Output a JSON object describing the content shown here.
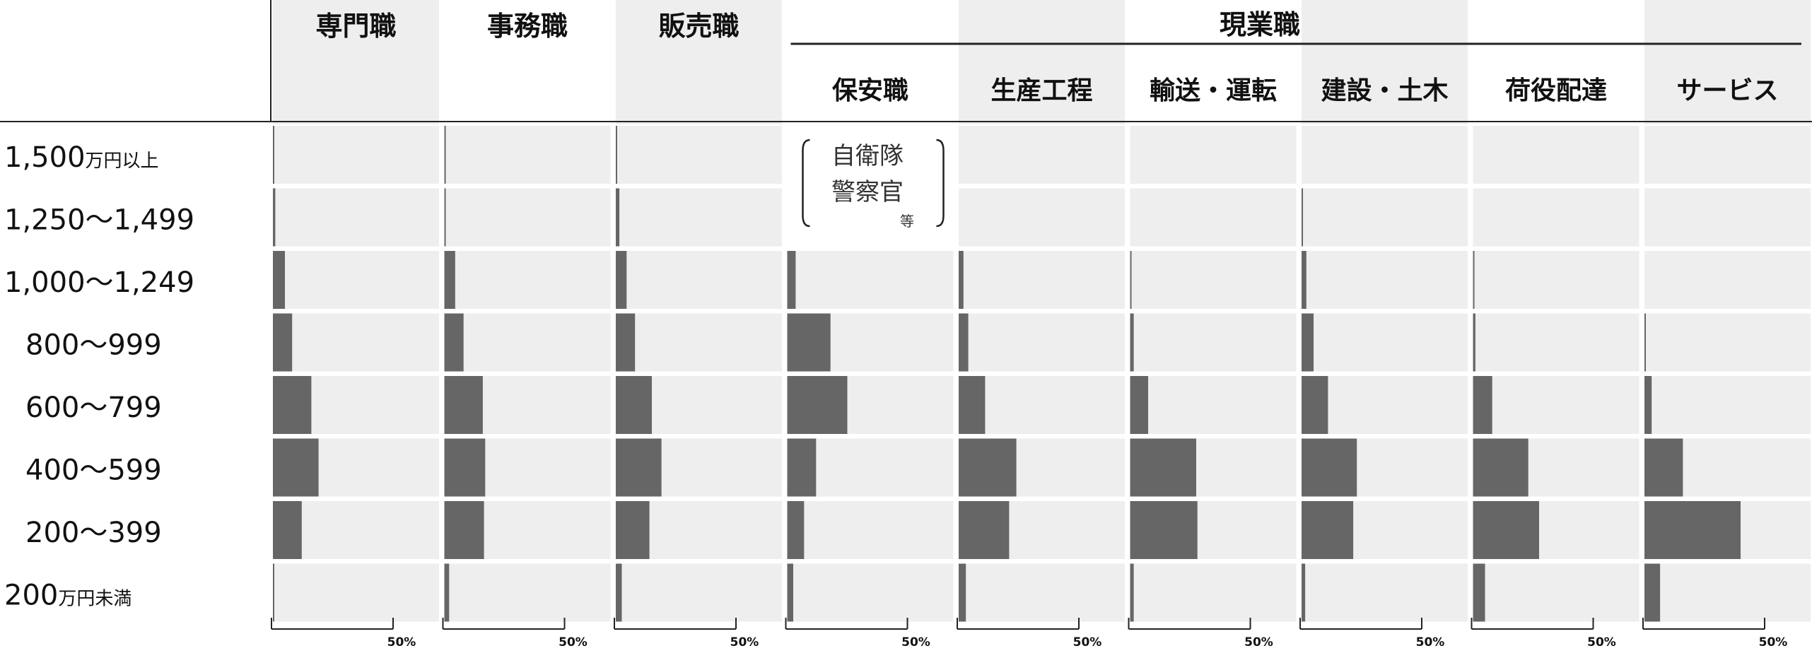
{
  "chart_data": {
    "type": "bar",
    "orientation": "horizontal",
    "group_header": "現業職",
    "categories": [
      {
        "main": "1,500",
        "suffix": "万円以上"
      },
      {
        "main": "1,250～1,499",
        "suffix": ""
      },
      {
        "main": "1,000～1,249",
        "suffix": ""
      },
      {
        "main": "800～999",
        "suffix": ""
      },
      {
        "main": "600～799",
        "suffix": ""
      },
      {
        "main": "400～599",
        "suffix": ""
      },
      {
        "main": "200～399",
        "suffix": ""
      },
      {
        "main": "200",
        "suffix": "万円未満"
      }
    ],
    "series": [
      {
        "name": "専門職",
        "group": "",
        "values": [
          0.5,
          1.0,
          5.0,
          8.0,
          16.0,
          19.0,
          12.0,
          0.5
        ]
      },
      {
        "name": "事務職",
        "group": "",
        "values": [
          0.3,
          0.5,
          4.5,
          8.0,
          16.0,
          17.0,
          16.5,
          2.0
        ]
      },
      {
        "name": "販売職",
        "group": "",
        "values": [
          0.3,
          1.5,
          4.5,
          8.0,
          15.0,
          19.0,
          14.0,
          2.5
        ]
      },
      {
        "name": "保安職",
        "group": "現業職",
        "values": [
          0,
          0,
          3.5,
          18.0,
          25.0,
          12.0,
          7.0,
          2.5
        ]
      },
      {
        "name": "生産工程",
        "group": "現業職",
        "values": [
          0,
          0,
          2.0,
          4.0,
          11.0,
          24.0,
          21.0,
          3.0
        ]
      },
      {
        "name": "輸送・運転",
        "group": "現業職",
        "values": [
          0,
          0,
          0.5,
          1.5,
          7.5,
          27.5,
          28.0,
          1.5
        ]
      },
      {
        "name": "建設・土木",
        "group": "現業職",
        "values": [
          0,
          0.3,
          2.0,
          5.0,
          11.0,
          23.0,
          21.5,
          1.5
        ]
      },
      {
        "name": "荷役配達",
        "group": "現業職",
        "values": [
          0,
          0,
          0.5,
          1.0,
          8.0,
          23.0,
          27.5,
          5.0
        ]
      },
      {
        "name": "サービス",
        "group": "現業職",
        "values": [
          0,
          0,
          0,
          0.5,
          3.0,
          16.0,
          40.0,
          6.5
        ]
      }
    ],
    "xlim": [
      0,
      50
    ],
    "tick_label": "50%",
    "annotation": {
      "lines": [
        "自衛隊",
        "警察官"
      ],
      "small": "等"
    },
    "colors": {
      "bar": "#666666",
      "panel": "#eeeeee",
      "text": "#111111",
      "line": "#222222"
    },
    "legend": "none",
    "grid": false
  }
}
